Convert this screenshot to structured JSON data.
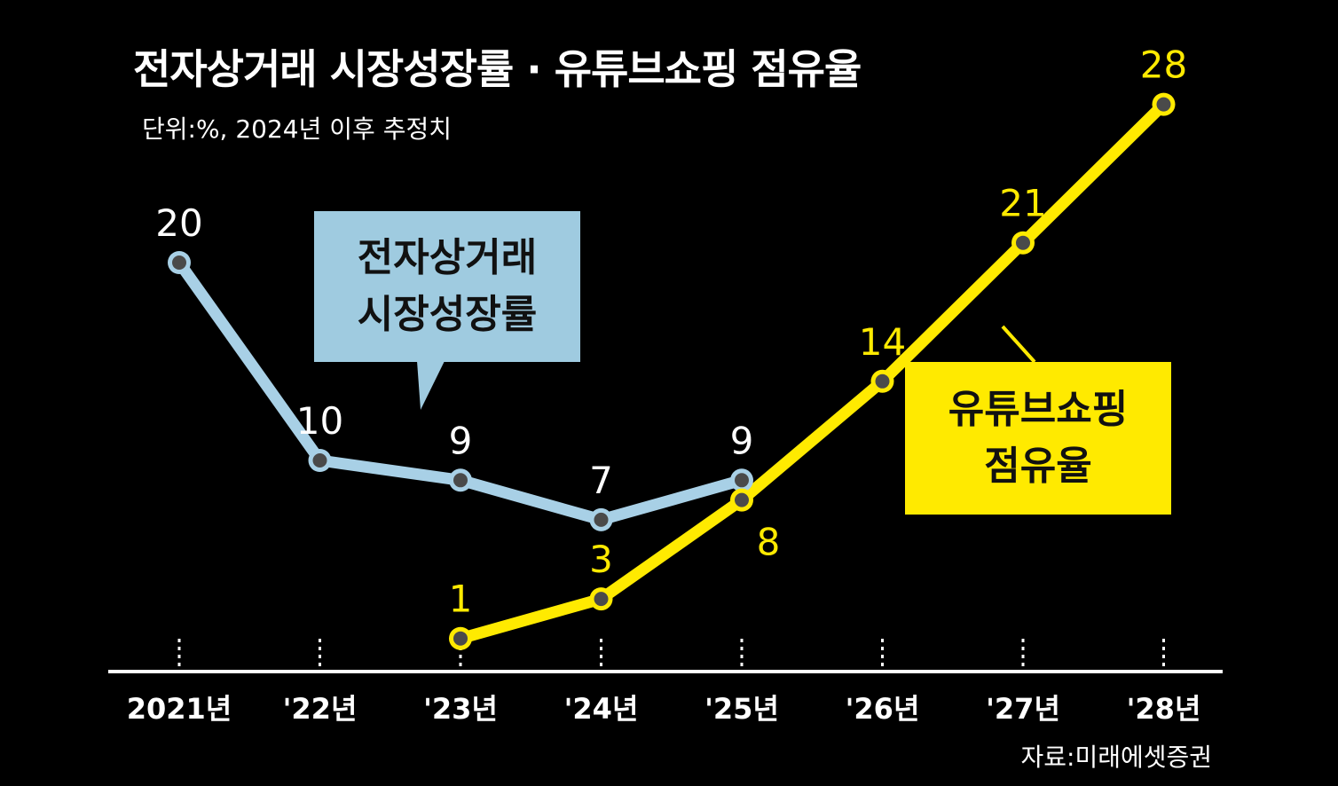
{
  "header": {
    "title": "전자상거래 시장성장률 · 유튜브쇼핑 점유율",
    "subtitle": "단위:%, 2024년 이후 추정치"
  },
  "footer": {
    "source": "자료:미래에셋증권"
  },
  "callouts": {
    "ecommerce": {
      "line1": "전자상거래",
      "line2": "시장성장률"
    },
    "youtube": {
      "line1": "유튜브쇼핑",
      "line2": "점유율"
    }
  },
  "colors": {
    "background": "#000000",
    "ecommerce_line": "#a8d0e6",
    "youtube_line": "#ffea00",
    "marker": "#4a4a4a",
    "axis": "#ffffff"
  },
  "chart_data": {
    "type": "line",
    "title": "전자상거래 시장성장률 · 유튜브쇼핑 점유율",
    "subtitle": "단위:%, 2024년 이후 추정치",
    "categories": [
      "2021년",
      "'22년",
      "'23년",
      "'24년",
      "'25년",
      "'26년",
      "'27년",
      "'28년"
    ],
    "ylim": [
      0,
      30
    ],
    "grid": false,
    "legend": "callout boxes",
    "series": [
      {
        "name": "전자상거래 시장성장률",
        "color": "#a8d0e6",
        "values": [
          20,
          10,
          9,
          7,
          9,
          null,
          null,
          null
        ]
      },
      {
        "name": "유튜브쇼핑 점유율",
        "color": "#ffea00",
        "values": [
          null,
          null,
          1,
          3,
          8,
          14,
          21,
          28
        ]
      }
    ]
  }
}
